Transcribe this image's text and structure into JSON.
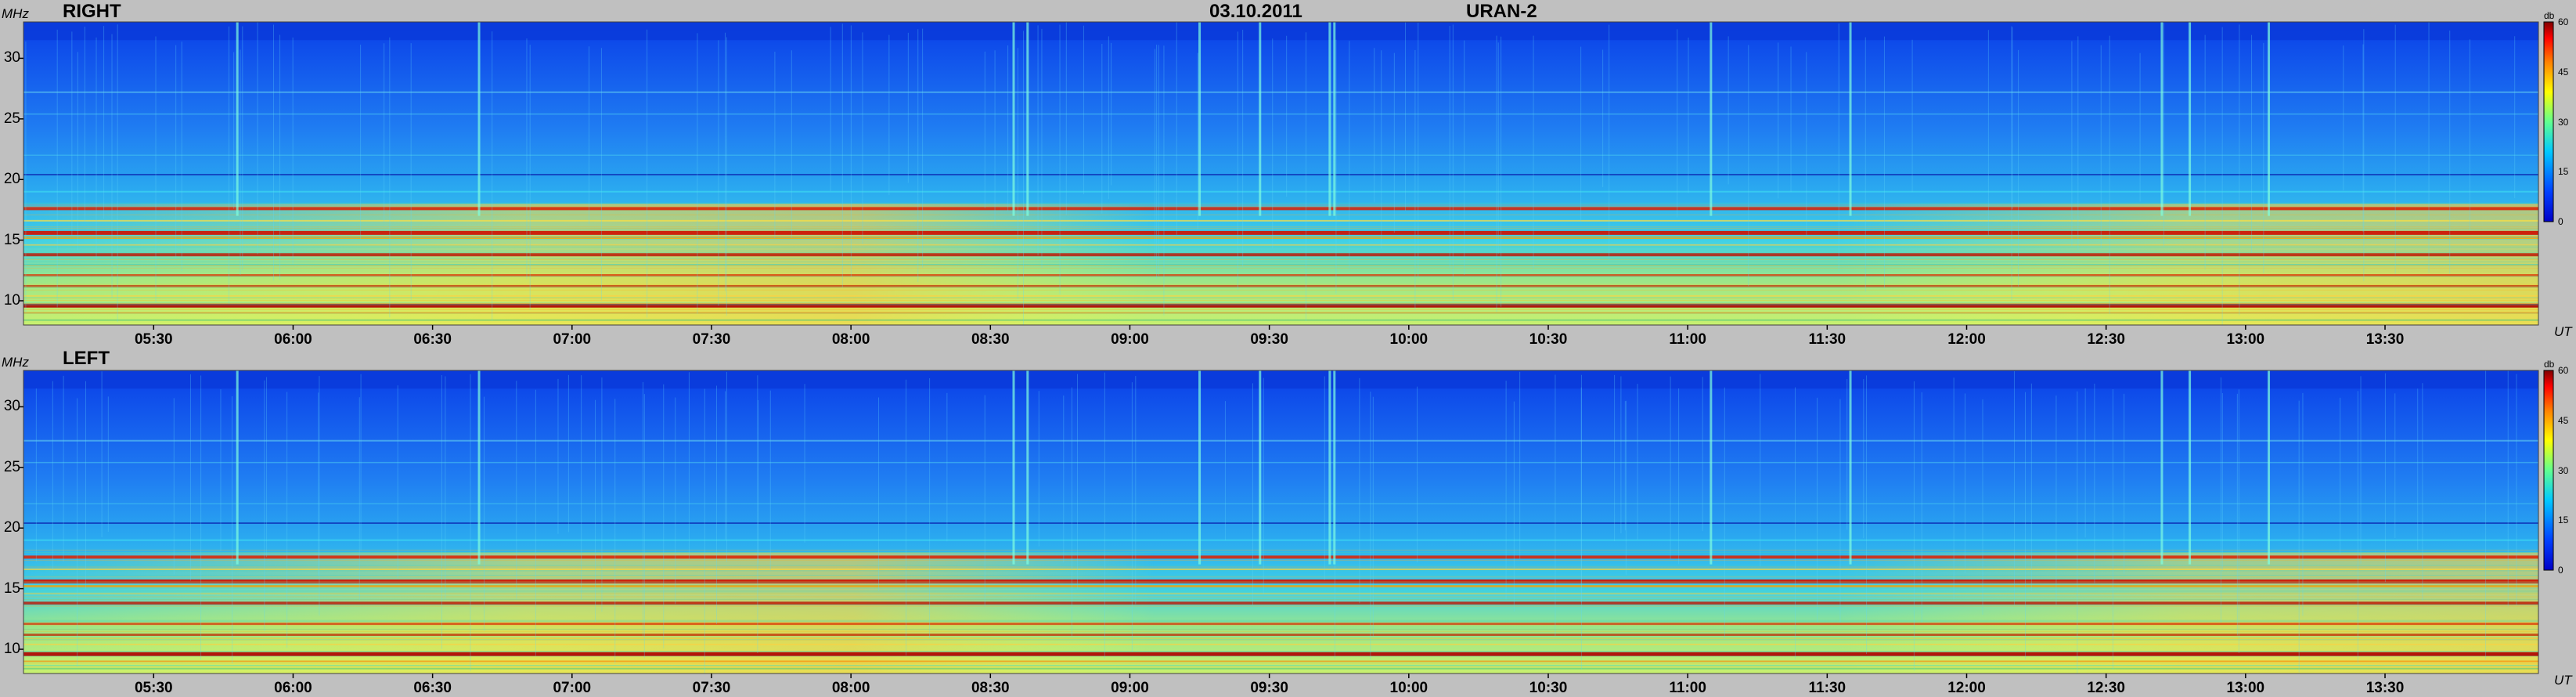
{
  "header": {
    "date": "03.10.2011",
    "instrument": "URAN-2"
  },
  "axes": {
    "y_unit": "MHz",
    "x_unit": "UT",
    "colorbar_unit": "db"
  },
  "colorbar": {
    "ticks": [
      "60",
      "45",
      "30",
      "15",
      "0"
    ],
    "range": [
      0,
      60
    ]
  },
  "chart_data": [
    {
      "type": "heatmap",
      "title": "RIGHT",
      "ylabel": "MHz",
      "xlabel": "UT",
      "y_ticks": [
        10,
        15,
        20,
        25,
        30
      ],
      "x_ticks": [
        "05:30",
        "06:00",
        "06:30",
        "07:00",
        "07:30",
        "08:00",
        "08:30",
        "09:00",
        "09:30",
        "10:00",
        "10:30",
        "11:00",
        "11:30",
        "12:00",
        "12:30",
        "13:00",
        "13:30"
      ],
      "x_range": [
        "05:02",
        "14:03"
      ],
      "ylim": [
        8,
        33
      ],
      "colorbar": {
        "label": "db",
        "range": [
          0,
          60
        ]
      }
    },
    {
      "type": "heatmap",
      "title": "LEFT",
      "ylabel": "MHz",
      "xlabel": "UT",
      "y_ticks": [
        10,
        15,
        20,
        25,
        30
      ],
      "x_ticks": [
        "05:30",
        "06:00",
        "06:30",
        "07:00",
        "07:30",
        "08:00",
        "08:30",
        "09:00",
        "09:30",
        "10:00",
        "10:30",
        "11:00",
        "11:30",
        "12:00",
        "12:30",
        "13:00",
        "13:30"
      ],
      "x_range": [
        "05:02",
        "14:03"
      ],
      "ylim": [
        8,
        33
      ],
      "colorbar": {
        "label": "db",
        "range": [
          0,
          60
        ]
      }
    }
  ]
}
